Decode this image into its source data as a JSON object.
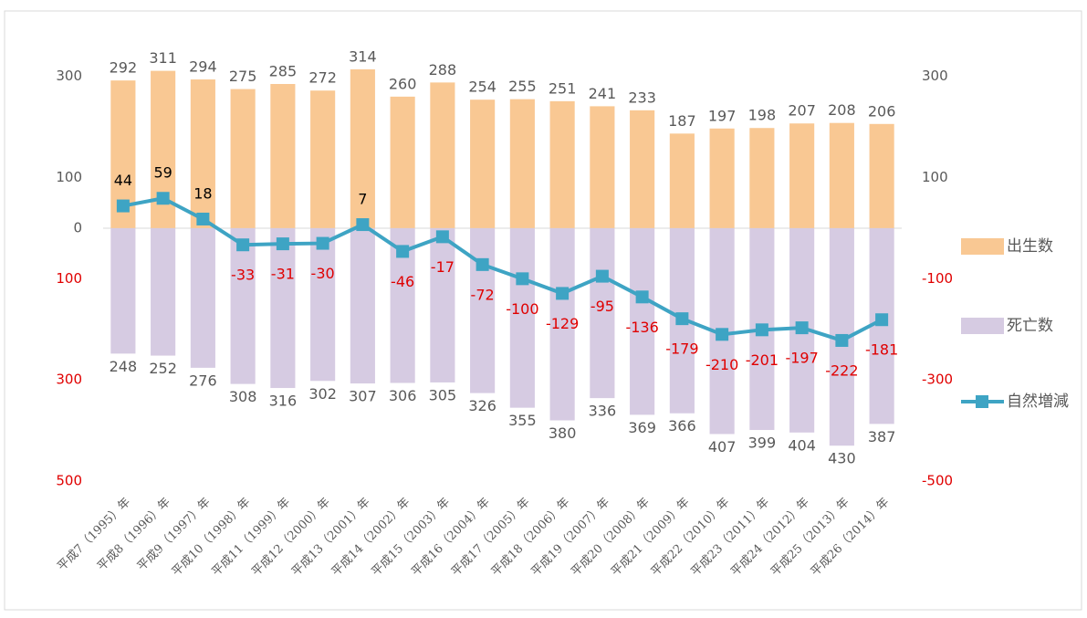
{
  "chart_data": {
    "type": "bar_line",
    "categories": [
      "平成7（1995）年",
      "平成8（1996）年",
      "平成9（1997）年",
      "平成10（1998）年",
      "平成11（1999）年",
      "平成12（2000）年",
      "平成13（2001）年",
      "平成14（2002）年",
      "平成15（2003）年",
      "平成16（2004）年",
      "平成17（2005）年",
      "平成18（2006）年",
      "平成19（2007）年",
      "平成20（2008）年",
      "平成21（2009）年",
      "平成22（2010）年",
      "平成23（2011）年",
      "平成24（2012）年",
      "平成25（2013）年",
      "平成26（2014）年"
    ],
    "series": [
      {
        "name": "出生数",
        "type": "bar",
        "color": "#f9c893",
        "values": [
          292,
          311,
          294,
          275,
          285,
          272,
          314,
          260,
          288,
          254,
          255,
          251,
          241,
          233,
          187,
          197,
          198,
          207,
          208,
          206
        ]
      },
      {
        "name": "死亡数",
        "type": "bar",
        "color": "#d6cbe2",
        "values": [
          -248,
          -252,
          -276,
          -308,
          -316,
          -302,
          -307,
          -306,
          -305,
          -326,
          -355,
          -380,
          -336,
          -369,
          -366,
          -407,
          -399,
          -404,
          -430,
          -387
        ],
        "value_labels": [
          "248",
          "252",
          "276",
          "308",
          "316",
          "302",
          "307",
          "306",
          "305",
          "326",
          "355",
          "380",
          "336",
          "369",
          "366",
          "407",
          "399",
          "404",
          "430",
          "387"
        ]
      },
      {
        "name": "自然増減",
        "type": "line",
        "color": "#3ea4c4",
        "values": [
          44,
          59,
          18,
          -33,
          -31,
          -30,
          7,
          -46,
          -17,
          -72,
          -100,
          -129,
          -95,
          -136,
          -179,
          -210,
          -201,
          -197,
          -222,
          -181
        ]
      }
    ],
    "ylim": [
      -500,
      350
    ],
    "yticks": [
      300,
      100,
      0,
      {
        "value": -100,
        "label": "100"
      },
      {
        "value": -300,
        "label": "300"
      },
      {
        "value": -500,
        "label": "500"
      }
    ],
    "y2lim": [
      -500,
      350
    ],
    "y2ticks": [
      300,
      100,
      -100,
      -300,
      -500
    ],
    "legend": "right"
  }
}
